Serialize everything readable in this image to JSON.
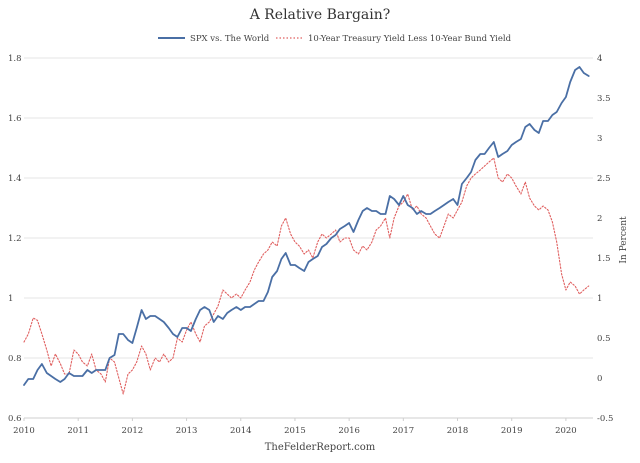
{
  "chart_data": {
    "type": "line",
    "title": "A Relative Bargain?",
    "source": "TheFelderReport.com",
    "xlabel": "",
    "ylabel_left": "",
    "ylabel_right": "In Percent",
    "x_ticks": [
      "2010",
      "2011",
      "2012",
      "2013",
      "2014",
      "2015",
      "2016",
      "2017",
      "2018",
      "2019",
      "2020"
    ],
    "x_range": [
      2010,
      2020.5
    ],
    "y_left": {
      "ticks": [
        "0.6",
        "0.8",
        "1",
        "1.2",
        "1.4",
        "1.6",
        "1.8"
      ],
      "ylim": [
        0.6,
        1.8
      ]
    },
    "y_right": {
      "ticks": [
        "-0.5",
        "0",
        "0.5",
        "1",
        "1.5",
        "2",
        "2.5",
        "3",
        "3.5",
        "4"
      ],
      "ylim": [
        -0.5,
        4
      ]
    },
    "grid": "horizontal",
    "legend_position": "top-center",
    "series": [
      {
        "name": "SPX vs. The World",
        "axis": "left",
        "color": "#4a6fa5",
        "style": "solid",
        "x": [
          2010.0,
          2010.08,
          2010.17,
          2010.25,
          2010.33,
          2010.42,
          2010.5,
          2010.58,
          2010.67,
          2010.75,
          2010.83,
          2010.92,
          2011.0,
          2011.08,
          2011.17,
          2011.25,
          2011.33,
          2011.42,
          2011.5,
          2011.58,
          2011.67,
          2011.75,
          2011.83,
          2011.92,
          2012.0,
          2012.08,
          2012.17,
          2012.25,
          2012.33,
          2012.42,
          2012.5,
          2012.58,
          2012.67,
          2012.75,
          2012.83,
          2012.92,
          2013.0,
          2013.08,
          2013.17,
          2013.25,
          2013.33,
          2013.42,
          2013.5,
          2013.58,
          2013.67,
          2013.75,
          2013.83,
          2013.92,
          2014.0,
          2014.08,
          2014.17,
          2014.25,
          2014.33,
          2014.42,
          2014.5,
          2014.58,
          2014.67,
          2014.75,
          2014.83,
          2014.92,
          2015.0,
          2015.08,
          2015.17,
          2015.25,
          2015.33,
          2015.42,
          2015.5,
          2015.58,
          2015.67,
          2015.75,
          2015.83,
          2015.92,
          2016.0,
          2016.08,
          2016.17,
          2016.25,
          2016.33,
          2016.42,
          2016.5,
          2016.58,
          2016.67,
          2016.75,
          2016.83,
          2016.92,
          2017.0,
          2017.08,
          2017.17,
          2017.25,
          2017.33,
          2017.42,
          2017.5,
          2017.58,
          2017.67,
          2017.75,
          2017.83,
          2017.92,
          2018.0,
          2018.08,
          2018.17,
          2018.25,
          2018.33,
          2018.42,
          2018.5,
          2018.58,
          2018.67,
          2018.75,
          2018.83,
          2018.92,
          2019.0,
          2019.08,
          2019.17,
          2019.25,
          2019.33,
          2019.42,
          2019.5,
          2019.58,
          2019.67,
          2019.75,
          2019.83,
          2019.92,
          2020.0,
          2020.08,
          2020.17,
          2020.25,
          2020.33,
          2020.42
        ],
        "values": [
          0.71,
          0.73,
          0.73,
          0.76,
          0.78,
          0.75,
          0.74,
          0.73,
          0.72,
          0.73,
          0.75,
          0.74,
          0.74,
          0.74,
          0.76,
          0.75,
          0.76,
          0.76,
          0.76,
          0.8,
          0.81,
          0.88,
          0.88,
          0.86,
          0.85,
          0.9,
          0.96,
          0.93,
          0.94,
          0.94,
          0.93,
          0.92,
          0.9,
          0.88,
          0.87,
          0.9,
          0.9,
          0.89,
          0.93,
          0.96,
          0.97,
          0.96,
          0.92,
          0.94,
          0.93,
          0.95,
          0.96,
          0.97,
          0.96,
          0.97,
          0.97,
          0.98,
          0.99,
          0.99,
          1.02,
          1.07,
          1.09,
          1.13,
          1.15,
          1.11,
          1.11,
          1.1,
          1.09,
          1.12,
          1.13,
          1.14,
          1.17,
          1.18,
          1.2,
          1.21,
          1.23,
          1.24,
          1.25,
          1.22,
          1.26,
          1.29,
          1.3,
          1.29,
          1.29,
          1.28,
          1.28,
          1.34,
          1.33,
          1.31,
          1.34,
          1.31,
          1.3,
          1.28,
          1.29,
          1.28,
          1.28,
          1.29,
          1.3,
          1.31,
          1.32,
          1.33,
          1.31,
          1.38,
          1.4,
          1.42,
          1.46,
          1.48,
          1.48,
          1.5,
          1.52,
          1.47,
          1.48,
          1.49,
          1.51,
          1.52,
          1.53,
          1.57,
          1.58,
          1.56,
          1.55,
          1.59,
          1.59,
          1.61,
          1.62,
          1.65,
          1.67,
          1.72,
          1.76,
          1.77,
          1.75,
          1.74
        ]
      },
      {
        "name": "10-Year Treasury Yield Less 10-Year Bund Yield",
        "axis": "right",
        "color": "#e06060",
        "style": "dotted",
        "x": [
          2010.0,
          2010.08,
          2010.17,
          2010.25,
          2010.33,
          2010.42,
          2010.5,
          2010.58,
          2010.67,
          2010.75,
          2010.83,
          2010.92,
          2011.0,
          2011.08,
          2011.17,
          2011.25,
          2011.33,
          2011.42,
          2011.5,
          2011.58,
          2011.67,
          2011.75,
          2011.83,
          2011.92,
          2012.0,
          2012.08,
          2012.17,
          2012.25,
          2012.33,
          2012.42,
          2012.5,
          2012.58,
          2012.67,
          2012.75,
          2012.83,
          2012.92,
          2013.0,
          2013.08,
          2013.17,
          2013.25,
          2013.33,
          2013.42,
          2013.5,
          2013.58,
          2013.67,
          2013.75,
          2013.83,
          2013.92,
          2014.0,
          2014.08,
          2014.17,
          2014.25,
          2014.33,
          2014.42,
          2014.5,
          2014.58,
          2014.67,
          2014.75,
          2014.83,
          2014.92,
          2015.0,
          2015.08,
          2015.17,
          2015.25,
          2015.33,
          2015.42,
          2015.5,
          2015.58,
          2015.67,
          2015.75,
          2015.83,
          2015.92,
          2016.0,
          2016.08,
          2016.17,
          2016.25,
          2016.33,
          2016.42,
          2016.5,
          2016.58,
          2016.67,
          2016.75,
          2016.83,
          2016.92,
          2017.0,
          2017.08,
          2017.17,
          2017.25,
          2017.33,
          2017.42,
          2017.5,
          2017.58,
          2017.67,
          2017.75,
          2017.83,
          2017.92,
          2018.0,
          2018.08,
          2018.17,
          2018.25,
          2018.33,
          2018.42,
          2018.5,
          2018.58,
          2018.67,
          2018.75,
          2018.83,
          2018.92,
          2019.0,
          2019.08,
          2019.17,
          2019.25,
          2019.33,
          2019.42,
          2019.5,
          2019.58,
          2019.67,
          2019.75,
          2019.83,
          2019.92,
          2020.0,
          2020.08,
          2020.17,
          2020.25,
          2020.33,
          2020.42
        ],
        "values": [
          0.45,
          0.55,
          0.75,
          0.72,
          0.55,
          0.35,
          0.15,
          0.3,
          0.18,
          0.05,
          0.05,
          0.35,
          0.3,
          0.2,
          0.15,
          0.3,
          0.1,
          0.05,
          -0.05,
          0.25,
          0.2,
          0.0,
          -0.2,
          0.05,
          0.1,
          0.2,
          0.4,
          0.3,
          0.1,
          0.25,
          0.2,
          0.3,
          0.2,
          0.25,
          0.5,
          0.45,
          0.6,
          0.7,
          0.55,
          0.45,
          0.65,
          0.7,
          0.8,
          0.9,
          1.1,
          1.05,
          1.0,
          1.05,
          1.0,
          1.1,
          1.2,
          1.35,
          1.45,
          1.55,
          1.6,
          1.7,
          1.65,
          1.9,
          2.0,
          1.8,
          1.7,
          1.65,
          1.55,
          1.6,
          1.5,
          1.7,
          1.8,
          1.75,
          1.8,
          1.85,
          1.7,
          1.75,
          1.75,
          1.6,
          1.55,
          1.65,
          1.6,
          1.7,
          1.85,
          1.9,
          2.0,
          1.75,
          2.0,
          2.15,
          2.2,
          2.3,
          2.1,
          2.15,
          2.05,
          2.0,
          1.9,
          1.8,
          1.75,
          1.9,
          2.05,
          2.0,
          2.1,
          2.2,
          2.4,
          2.5,
          2.55,
          2.6,
          2.65,
          2.7,
          2.75,
          2.5,
          2.45,
          2.55,
          2.5,
          2.4,
          2.3,
          2.45,
          2.25,
          2.15,
          2.1,
          2.15,
          2.1,
          1.95,
          1.7,
          1.3,
          1.1,
          1.2,
          1.15,
          1.05,
          1.1,
          1.15
        ]
      }
    ]
  }
}
